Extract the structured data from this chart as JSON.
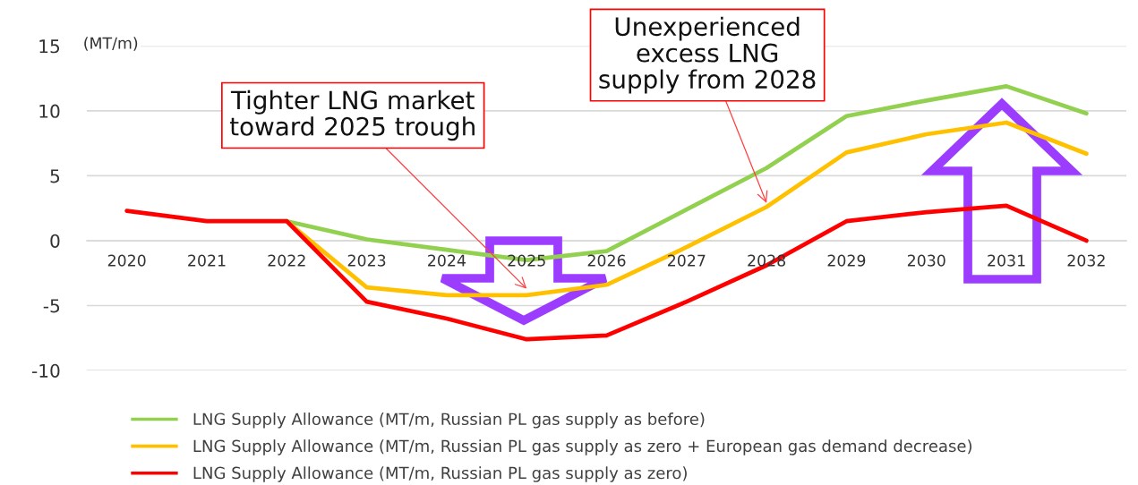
{
  "chart_data": {
    "type": "line",
    "categories": [
      "2020",
      "2021",
      "2022",
      "2023",
      "2024",
      "2025",
      "2026",
      "2027",
      "2028",
      "2029",
      "2030",
      "2031",
      "2032"
    ],
    "series": [
      {
        "name": "LNG Supply Allowance (MT/m, Russian PL gas supply as before)",
        "color": "#92d050",
        "values": [
          null,
          null,
          1.5,
          0.1,
          -0.7,
          -1.5,
          -0.8,
          2.4,
          5.6,
          9.6,
          10.8,
          11.9,
          9.8
        ]
      },
      {
        "name": "LNG Supply Allowance (MT/m, Russian PL gas supply as zero + European gas demand decrease)",
        "color": "#ffc000",
        "values": [
          null,
          null,
          1.5,
          -3.6,
          -4.2,
          -4.2,
          -3.4,
          -0.5,
          2.6,
          6.8,
          8.2,
          9.1,
          6.7
        ]
      },
      {
        "name": "LNG Supply Allowance (MT/m, Russian PL gas supply as zero)",
        "color": "#ff0000",
        "values": [
          2.3,
          1.5,
          1.5,
          -4.7,
          -6.0,
          -7.6,
          -7.3,
          -4.7,
          -1.9,
          1.5,
          2.2,
          2.7,
          0.0
        ]
      }
    ],
    "ylabel": "(MT/m)",
    "ylim": [
      -10,
      15
    ],
    "yticks": [
      -10,
      -5,
      0,
      5,
      10,
      15
    ],
    "annotations": [
      {
        "text": "Tighter LNG market\ntoward 2025 trough",
        "x": "2025",
        "y": -3.7
      },
      {
        "text": "Unexperienced\nexcess LNG\nsupply from 2028",
        "x": "2028",
        "y": 2.9
      }
    ],
    "grid": "y",
    "legend": "bottom",
    "line_style": "solid"
  }
}
